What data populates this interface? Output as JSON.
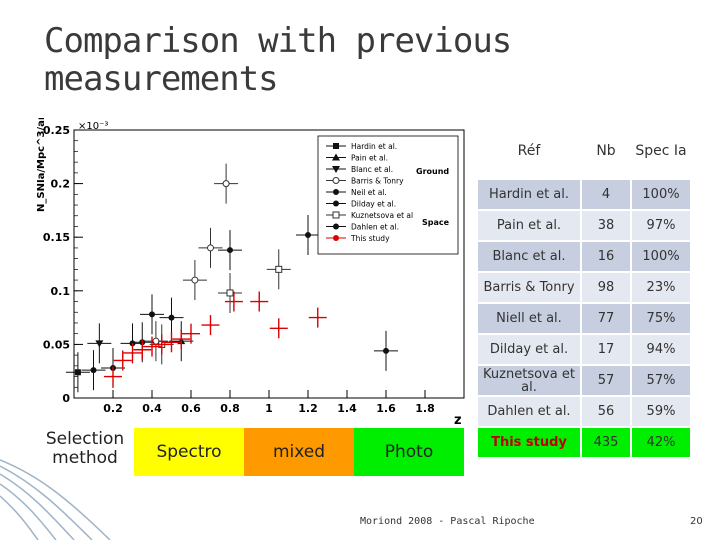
{
  "slide": {
    "title": "Comparison with previous measurements",
    "footer": "Moriond 2008 - Pascal Ripoche",
    "page": "20"
  },
  "selection": {
    "label": "Selection method",
    "methods": [
      {
        "label": "Spectro",
        "color": "#ffff00"
      },
      {
        "label": "mixed",
        "color": "#ff9900"
      },
      {
        "label": "Photo",
        "color": "#00ee00"
      }
    ]
  },
  "table": {
    "headers": [
      "Réf",
      "Nb",
      "Spec Ia"
    ],
    "rows": [
      {
        "ref": "Hardin et al.",
        "nb": "4",
        "spec": "100%"
      },
      {
        "ref": "Pain et al.",
        "nb": "38",
        "spec": "97%"
      },
      {
        "ref": "Blanc et al.",
        "nb": "16",
        "spec": "100%"
      },
      {
        "ref": "Barris & Tonry",
        "nb": "98",
        "spec": "23%"
      },
      {
        "ref": "Niell et al.",
        "nb": "77",
        "spec": "75%"
      },
      {
        "ref": "Dilday et al.",
        "nb": "17",
        "spec": "94%"
      },
      {
        "ref": "Kuznetsova et al.",
        "nb": "57",
        "spec": "57%"
      },
      {
        "ref": "Dahlen et al.",
        "nb": "56",
        "spec": "59%"
      },
      {
        "ref": "This study",
        "nb": "435",
        "spec": "42%"
      }
    ]
  },
  "chart_data": {
    "type": "scatter",
    "ylabel": "N_SNIa/Mpc^3/an",
    "xlabel": "z",
    "y_multiplier_label": "×10⁻³",
    "xlim": [
      0,
      2.0
    ],
    "ylim": [
      0,
      0.25
    ],
    "x_ticks": [
      "0.2",
      "0.4",
      "0.6",
      "0.8",
      "1",
      "1.2",
      "1.4",
      "1.6",
      "1.8"
    ],
    "y_ticks": [
      "0",
      "0.05",
      "0.1",
      "0.15",
      "0.2",
      "0.25"
    ],
    "legend": [
      "Hardin et al.",
      "Pain et al.",
      "Blanc et al.",
      "Barris & Tonry",
      "Neil et al.",
      "Dilday et al.",
      "Kuznetsova et al",
      "Dahlen et al.",
      "This study"
    ],
    "legend_annotations": [
      "Ground",
      "Space"
    ],
    "legend_position": "top-right",
    "series": [
      {
        "name": "Hardin et al.",
        "color": "#111111",
        "marker": "square",
        "points": [
          {
            "x": 0.02,
            "y": 0.024
          }
        ]
      },
      {
        "name": "Pain et al.",
        "color": "#111111",
        "marker": "triangle",
        "points": [
          {
            "x": 0.55,
            "y": 0.053
          }
        ]
      },
      {
        "name": "Blanc et al.",
        "color": "#111111",
        "marker": "triangle-down",
        "points": [
          {
            "x": 0.13,
            "y": 0.051
          }
        ]
      },
      {
        "name": "Barris & Tonry",
        "color": "#333333",
        "marker": "open-circle",
        "points": [
          {
            "x": 0.42,
            "y": 0.053
          },
          {
            "x": 0.62,
            "y": 0.11
          },
          {
            "x": 0.7,
            "y": 0.14
          },
          {
            "x": 0.78,
            "y": 0.2
          }
        ]
      },
      {
        "name": "Neil et al.",
        "color": "#111111",
        "marker": "circle",
        "points": [
          {
            "x": 0.35,
            "y": 0.052
          },
          {
            "x": 0.5,
            "y": 0.075
          }
        ]
      },
      {
        "name": "Dilday et al.",
        "color": "#111111",
        "marker": "circle",
        "points": [
          {
            "x": 0.1,
            "y": 0.026
          },
          {
            "x": 0.2,
            "y": 0.028
          },
          {
            "x": 0.3,
            "y": 0.051
          }
        ]
      },
      {
        "name": "Kuznetsova et al",
        "color": "#333333",
        "marker": "open-square",
        "points": [
          {
            "x": 0.45,
            "y": 0.05
          },
          {
            "x": 0.8,
            "y": 0.098
          },
          {
            "x": 1.05,
            "y": 0.12
          }
        ]
      },
      {
        "name": "Dahlen et al.",
        "color": "#111111",
        "marker": "circle",
        "points": [
          {
            "x": 0.4,
            "y": 0.078
          },
          {
            "x": 0.8,
            "y": 0.138
          },
          {
            "x": 1.2,
            "y": 0.152
          },
          {
            "x": 1.6,
            "y": 0.044
          }
        ]
      },
      {
        "name": "This study",
        "color": "#dd0000",
        "marker": "cross",
        "points": [
          {
            "x": 0.2,
            "y": 0.02
          },
          {
            "x": 0.25,
            "y": 0.035
          },
          {
            "x": 0.3,
            "y": 0.042
          },
          {
            "x": 0.35,
            "y": 0.045
          },
          {
            "x": 0.4,
            "y": 0.048
          },
          {
            "x": 0.45,
            "y": 0.05
          },
          {
            "x": 0.5,
            "y": 0.052
          },
          {
            "x": 0.55,
            "y": 0.055
          },
          {
            "x": 0.6,
            "y": 0.06
          },
          {
            "x": 0.7,
            "y": 0.068
          },
          {
            "x": 0.82,
            "y": 0.09
          },
          {
            "x": 0.95,
            "y": 0.09
          },
          {
            "x": 1.05,
            "y": 0.065
          },
          {
            "x": 1.25,
            "y": 0.075
          }
        ]
      }
    ]
  }
}
